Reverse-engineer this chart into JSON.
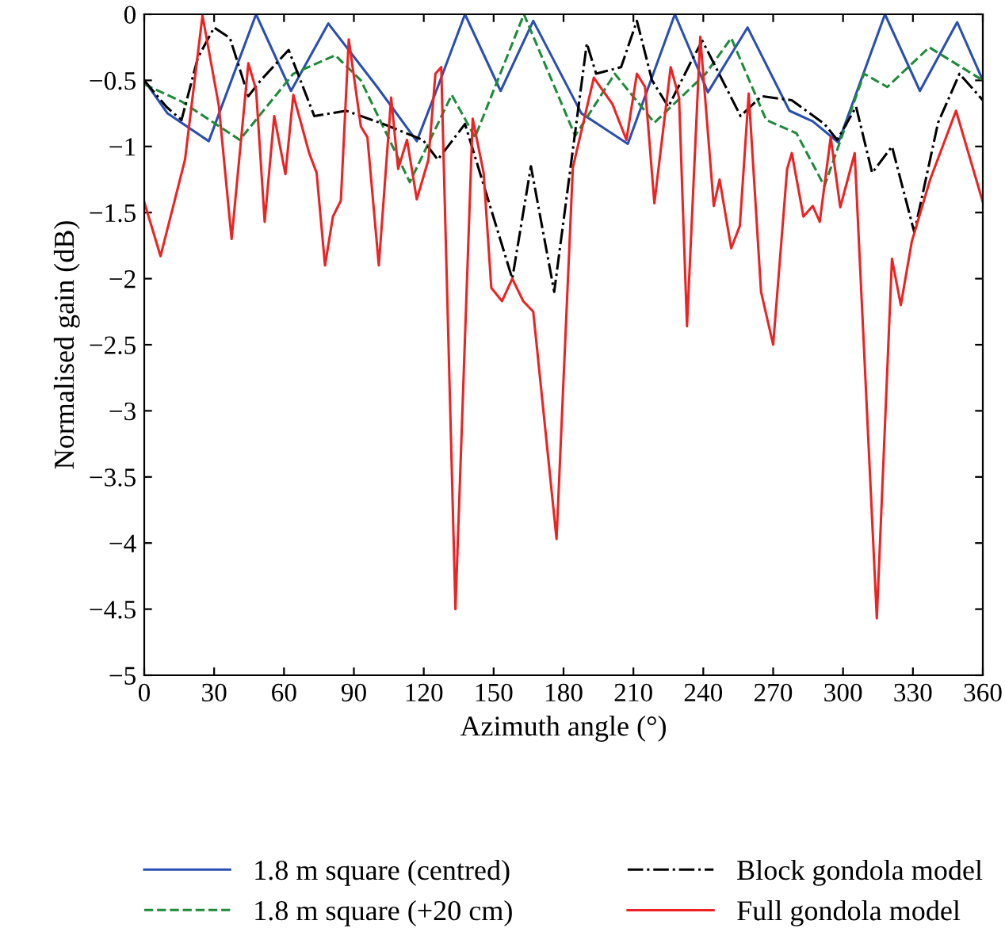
{
  "chart_data": {
    "type": "line",
    "xlabel": "Azimuth angle (°)",
    "ylabel": "Normalised gain (dB)",
    "xlim": [
      0,
      360
    ],
    "ylim": [
      -5,
      0
    ],
    "xticks": [
      0,
      30,
      60,
      90,
      120,
      150,
      180,
      210,
      240,
      270,
      300,
      330,
      360
    ],
    "yticks": [
      0,
      -0.5,
      -1,
      -1.5,
      -2,
      -2.5,
      -3,
      -3.5,
      -4,
      -4.5,
      -5
    ],
    "grid": false,
    "legend": "bottom",
    "series": [
      {
        "name": "1.8 m square (centred)",
        "color": "#2a4fb0",
        "line_style": "solid",
        "x": [
          0,
          10,
          27.7,
          48,
          63,
          79,
          100,
          117,
          126,
          137.7,
          153,
          167,
          187.7,
          207.6,
          227.8,
          242,
          259,
          277,
          287,
          298,
          318,
          333,
          349,
          360
        ],
        "values": [
          -0.5,
          -0.75,
          -0.96,
          0,
          -0.58,
          -0.07,
          -0.55,
          -0.96,
          -0.55,
          0,
          -0.58,
          -0.05,
          -0.75,
          -0.98,
          0,
          -0.59,
          -0.1,
          -0.73,
          -0.81,
          -0.97,
          0,
          -0.58,
          -0.06,
          -0.5
        ]
      },
      {
        "name": "1.8 m square (+20 cm)",
        "color": "#1e8a3a",
        "line_style": "dashed",
        "x": [
          0,
          16,
          41,
          64,
          82,
          93,
          114,
          132,
          142,
          163,
          185,
          202,
          219,
          241,
          252,
          267,
          280,
          292,
          309,
          319,
          337,
          360
        ],
        "values": [
          -0.53,
          -0.66,
          -0.95,
          -0.45,
          -0.31,
          -0.5,
          -1.27,
          -0.61,
          -0.93,
          0,
          -0.92,
          -0.45,
          -0.82,
          -0.45,
          -0.18,
          -0.8,
          -0.9,
          -1.3,
          -0.45,
          -0.55,
          -0.25,
          -0.5
        ]
      },
      {
        "name": "Block gondola model",
        "color": "#000000",
        "line_style": "dashdot",
        "x": [
          0,
          9.5,
          16,
          23,
          30,
          36.8,
          44.7,
          50,
          62,
          73,
          86.7,
          102.6,
          119.6,
          126,
          137.7,
          158,
          166,
          176,
          190,
          194,
          204.7,
          211.5,
          218,
          225,
          235,
          239.6,
          256,
          265,
          278,
          292,
          297.5,
          305.6,
          312.5,
          321,
          330.6,
          340.8,
          350,
          360
        ],
        "values": [
          -0.5,
          -0.7,
          -0.8,
          -0.33,
          -0.1,
          -0.18,
          -0.62,
          -0.5,
          -0.27,
          -0.77,
          -0.73,
          -0.83,
          -0.95,
          -1.1,
          -0.83,
          -2.0,
          -1.15,
          -2.1,
          -0.22,
          -0.45,
          -0.4,
          -0.05,
          -0.5,
          -0.7,
          -0.35,
          -0.2,
          -0.77,
          -0.62,
          -0.65,
          -0.83,
          -0.95,
          -0.7,
          -1.2,
          -1.0,
          -1.65,
          -0.82,
          -0.45,
          -0.65
        ]
      },
      {
        "name": "Full gondola model",
        "color": "#ee2222",
        "line_style": "solid",
        "x": [
          0,
          7,
          17.5,
          25,
          32,
          37.5,
          44.7,
          48,
          51.7,
          55.8,
          60.6,
          64,
          70.8,
          74,
          77.6,
          81,
          84.4,
          87.8,
          93,
          95.8,
          100.7,
          106,
          109,
          112.8,
          117,
          122,
          125,
          127.5,
          133.6,
          141,
          145.7,
          149,
          153.6,
          158,
          162.7,
          167,
          177,
          184,
          193,
          201,
          207,
          211.5,
          215,
          219,
          226,
          229.6,
          233,
          238.7,
          244.5,
          247,
          252,
          255.7,
          259.5,
          264.8,
          270,
          276,
          278,
          283,
          287,
          290,
          294.7,
          298.8,
          302,
          305,
          314.5,
          321,
          324.8,
          329.5,
          337.4,
          348.5,
          360
        ],
        "values": [
          -1.42,
          -1.83,
          -1.1,
          -0.01,
          -0.69,
          -1.7,
          -0.37,
          -0.57,
          -1.57,
          -0.77,
          -1.21,
          -0.61,
          -1.05,
          -1.2,
          -1.9,
          -1.53,
          -1.41,
          -0.19,
          -0.85,
          -0.93,
          -1.9,
          -0.63,
          -1.17,
          -0.95,
          -1.4,
          -1.1,
          -0.45,
          -0.4,
          -4.5,
          -0.79,
          -1.2,
          -2.07,
          -2.17,
          -2.0,
          -2.17,
          -2.25,
          -3.97,
          -1.16,
          -0.48,
          -0.68,
          -0.95,
          -0.45,
          -0.55,
          -1.43,
          -0.4,
          -0.63,
          -2.36,
          -0.17,
          -1.45,
          -1.25,
          -1.77,
          -1.6,
          -0.6,
          -2.1,
          -2.5,
          -1.17,
          -1.05,
          -1.53,
          -1.45,
          -1.57,
          -0.93,
          -1.46,
          -1.25,
          -1.05,
          -4.57,
          -1.85,
          -2.2,
          -1.72,
          -1.25,
          -0.73,
          -1.42
        ]
      }
    ]
  }
}
